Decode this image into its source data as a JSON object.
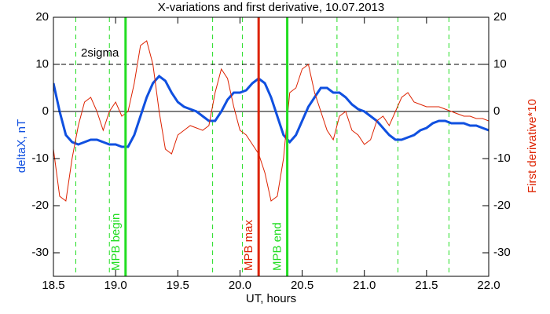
{
  "chart_data": {
    "type": "line",
    "title": "X-variations and first derivative, 10.07.2013",
    "xlabel": "UT, hours",
    "ylabel": "deltaX, nT",
    "y2label": "First derivative*10",
    "xlim": [
      18.5,
      22.0
    ],
    "xticks": [
      18.5,
      {
        "value": 19,
        "label": "19.0"
      },
      19.5,
      {
        "value": 20,
        "label": "20.0"
      },
      20.5,
      {
        "value": 21,
        "label": "21.0"
      },
      21.5,
      {
        "value": 22,
        "label": "22.0"
      }
    ],
    "ylim": [
      -35,
      20
    ],
    "yticks": [
      -30,
      -20,
      -10,
      0,
      10,
      20
    ],
    "y2lim": [
      -35,
      20
    ],
    "y2ticks": [
      -30,
      -20,
      -10,
      0,
      10,
      20
    ],
    "zero_line": 0,
    "threshold": {
      "value": 10,
      "label": "2sigma"
    },
    "dashed_lines": {
      "color": "#22dd22",
      "x": [
        18.68,
        18.95,
        19.78,
        20.02,
        20.78,
        21.27,
        21.68
      ]
    },
    "markers": [
      {
        "x": 19.08,
        "label": "MPB begin",
        "color": "#22dd22"
      },
      {
        "x": 20.15,
        "label": "MPB max",
        "color": "#dd2200"
      },
      {
        "x": 20.38,
        "label": "MPB end",
        "color": "#22dd22"
      }
    ],
    "x": [
      18.5,
      18.55,
      18.6,
      18.65,
      18.7,
      18.75,
      18.8,
      18.85,
      18.9,
      18.95,
      19.0,
      19.05,
      19.1,
      19.15,
      19.2,
      19.25,
      19.3,
      19.35,
      19.4,
      19.45,
      19.5,
      19.55,
      19.6,
      19.65,
      19.7,
      19.75,
      19.8,
      19.85,
      19.9,
      19.95,
      20.0,
      20.05,
      20.1,
      20.15,
      20.2,
      20.25,
      20.3,
      20.35,
      20.4,
      20.45,
      20.5,
      20.55,
      20.6,
      20.65,
      20.7,
      20.75,
      20.8,
      20.85,
      20.9,
      20.95,
      21.0,
      21.05,
      21.1,
      21.15,
      21.2,
      21.25,
      21.3,
      21.35,
      21.4,
      21.45,
      21.5,
      21.55,
      21.6,
      21.65,
      21.7,
      21.75,
      21.8,
      21.85,
      21.9,
      21.95,
      22.0
    ],
    "series": [
      {
        "name": "deltaX",
        "color": "#1050e0",
        "width": 3,
        "axis": "y",
        "values": [
          6,
          0,
          -5,
          -6.5,
          -7,
          -6.5,
          -6,
          -6,
          -6.5,
          -7,
          -7,
          -7.5,
          -7.5,
          -5,
          -1,
          3,
          6,
          7.5,
          6.5,
          4,
          2,
          1,
          0.5,
          0,
          -1,
          -2,
          -2,
          0,
          2.5,
          4,
          4,
          4.5,
          6,
          7,
          6,
          3,
          -1,
          -5,
          -6.5,
          -5,
          -2,
          1,
          3,
          5,
          5,
          4,
          4,
          3,
          1.5,
          0.5,
          0,
          -1,
          -2,
          -3.5,
          -5,
          -6,
          -6,
          -5.5,
          -5,
          -4,
          -3.5,
          -2.5,
          -2,
          -2,
          -2.5,
          -2.5,
          -2.5,
          -3,
          -3,
          -3.5,
          -4
        ]
      },
      {
        "name": "First derivative",
        "color": "#dd2200",
        "width": 1,
        "axis": "y2",
        "values": [
          -8,
          -18,
          -19,
          -10,
          -3,
          2,
          3,
          0,
          -4,
          0,
          2,
          -1,
          0,
          6,
          14,
          15,
          10,
          0,
          -8,
          -9,
          -5,
          -4,
          -3,
          -3.5,
          -4,
          -3,
          4,
          9,
          7,
          1,
          -4,
          -5,
          -7,
          -9,
          -13,
          -19,
          -18,
          -10,
          4,
          5,
          9,
          10,
          4,
          0,
          -4,
          -6,
          -1,
          0,
          -4,
          -5,
          -7,
          -6,
          -2,
          -1,
          -3,
          0,
          3,
          4,
          2,
          1.5,
          1,
          1,
          1,
          0.5,
          0,
          -0.5,
          -1,
          -1,
          -1.5,
          -1.5,
          -2
        ]
      }
    ]
  }
}
